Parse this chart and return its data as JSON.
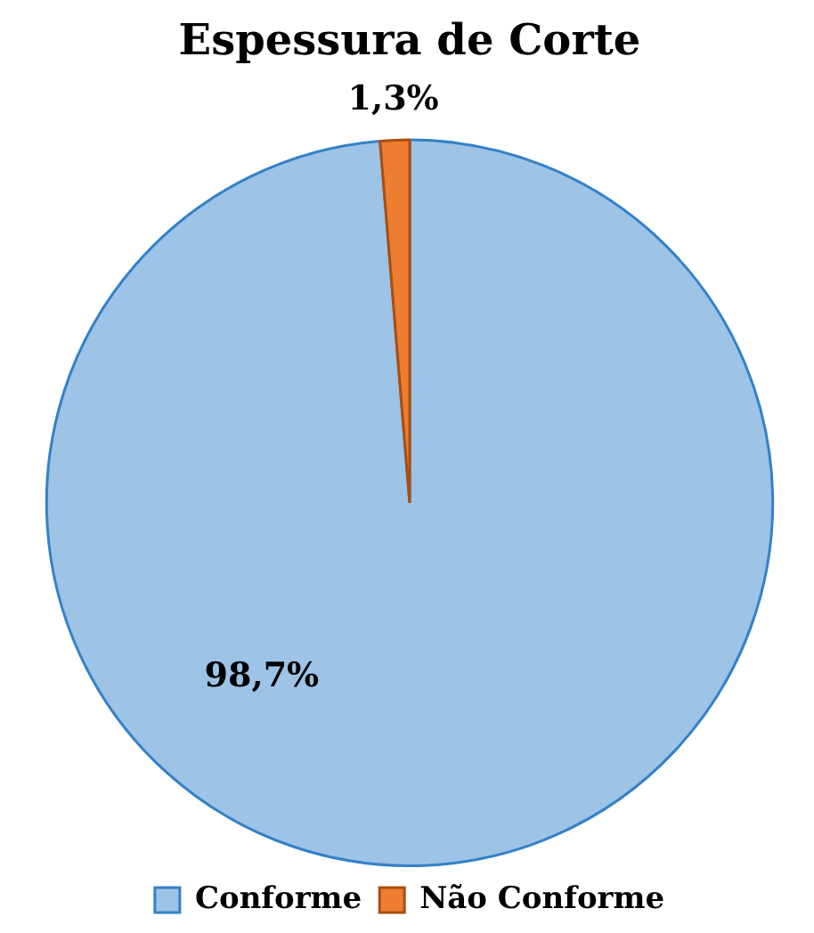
{
  "chart_data": {
    "type": "pie",
    "title": "Espessura de Corte",
    "categories": [
      "Conforme",
      "Não Conforme"
    ],
    "values": [
      98.7,
      1.3
    ],
    "colors": [
      "#9dc3e6",
      "#ed7d31"
    ],
    "value_labels": [
      "98,7%",
      "1,3%"
    ],
    "legend": "bottom"
  }
}
